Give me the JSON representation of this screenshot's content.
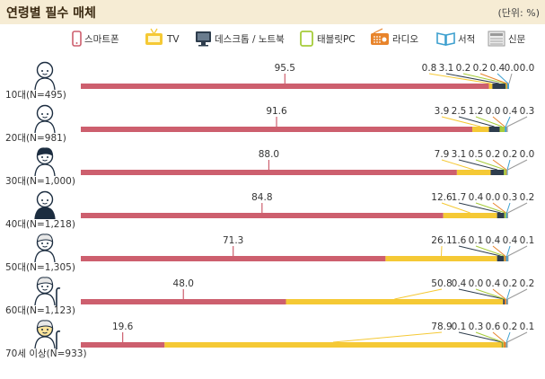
{
  "header": {
    "title": "연령별 필수 매체",
    "unit": "(단위: %)"
  },
  "colors": {
    "smartphone": "#cd5f6e",
    "tv": "#f5c935",
    "desktop": "#2e3d4d",
    "tablet": "#a6cc3a",
    "radio": "#e8842b",
    "book": "#3ea0cf",
    "newspaper": "#9a9a9a"
  },
  "chart_data": {
    "type": "bar",
    "stacked": true,
    "orientation": "horizontal",
    "title": "연령별 필수 매체",
    "unit": "(단위: %)",
    "categories": [
      "10대(N=495)",
      "20대(N=981)",
      "30대(N=1,000)",
      "40대(N=1,218)",
      "50대(N=1,305)",
      "60대(N=1,123)",
      "70세 이상(N=933)"
    ],
    "series": [
      {
        "name": "스마트폰",
        "icon": "smartphone-icon",
        "color_key": "smartphone",
        "values": [
          95.5,
          91.6,
          88.0,
          84.8,
          71.3,
          48.0,
          19.6
        ]
      },
      {
        "name": "TV",
        "icon": "tv-icon",
        "color_key": "tv",
        "values": [
          0.8,
          3.9,
          7.9,
          12.6,
          26.1,
          50.8,
          78.9
        ]
      },
      {
        "name": "데스크톱 / 노트북",
        "icon": "desktop-icon",
        "color_key": "desktop",
        "values": [
          3.1,
          2.5,
          3.1,
          1.7,
          1.6,
          0.4,
          0.1
        ]
      },
      {
        "name": "태블릿PC",
        "icon": "tablet-icon",
        "color_key": "tablet",
        "values": [
          0.2,
          1.2,
          0.5,
          0.4,
          0.1,
          0.0,
          0.3
        ]
      },
      {
        "name": "라디오",
        "icon": "radio-icon",
        "color_key": "radio",
        "values": [
          0.2,
          0.0,
          0.2,
          0.0,
          0.4,
          0.4,
          0.6
        ]
      },
      {
        "name": "서적",
        "icon": "book-icon",
        "color_key": "book",
        "values": [
          0.4,
          0.4,
          0.2,
          0.3,
          0.4,
          0.2,
          0.2
        ]
      },
      {
        "name": "신문",
        "icon": "newspaper-icon",
        "color_key": "newspaper",
        "values": [
          0.0,
          0.3,
          0.0,
          0.2,
          0.1,
          0.2,
          0.1
        ]
      }
    ],
    "extra_labels": [
      {
        "row": 0,
        "text": "0.0"
      }
    ],
    "xlim": [
      0,
      100
    ],
    "legend": "top",
    "grid": false
  }
}
